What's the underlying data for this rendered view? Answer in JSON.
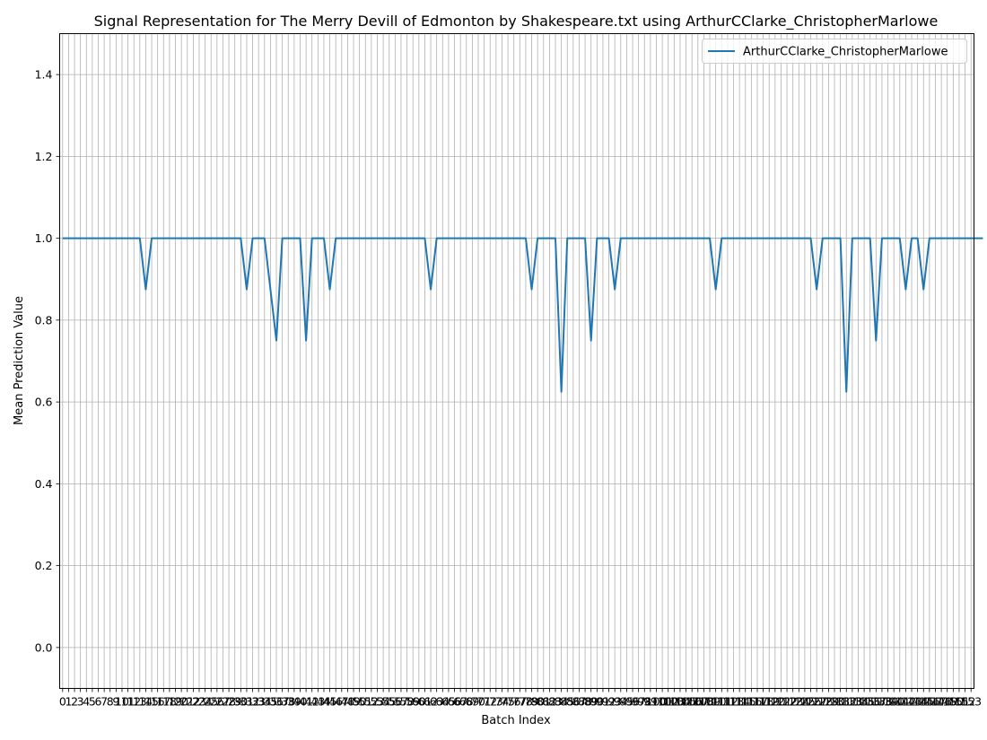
{
  "chart_data": {
    "type": "line",
    "title": "Signal Representation for The Merry Devill of Edmonton by Shakespeare.txt using ArthurCClarke_ChristopherMarlowe",
    "xlabel": "Batch Index",
    "ylabel": "Mean Prediction Value",
    "xlim": [
      -0.5,
      153.5
    ],
    "ylim": [
      -0.1,
      1.5
    ],
    "yticks": [
      0.0,
      0.2,
      0.4,
      0.6,
      0.8,
      1.0,
      1.2,
      1.4
    ],
    "ytick_labels": [
      "0.0",
      "0.2",
      "0.4",
      "0.6",
      "0.8",
      "1.0",
      "1.2",
      "1.4"
    ],
    "x_tick_start": 0,
    "x_tick_end": 153,
    "grid": true,
    "legend_position": "upper right",
    "series": [
      {
        "name": "ArthurCClarke_ChristopherMarlowe",
        "color": "#1f77b4",
        "values": [
          1,
          1,
          1,
          1,
          1,
          1,
          1,
          1,
          1,
          1,
          1,
          1,
          1,
          1,
          0.875,
          1,
          1,
          1,
          1,
          1,
          1,
          1,
          1,
          1,
          1,
          1,
          1,
          1,
          1,
          1,
          1,
          0.875,
          1,
          1,
          1,
          0.875,
          0.75,
          1,
          1,
          1,
          1,
          0.75,
          1,
          1,
          1,
          0.875,
          1,
          1,
          1,
          1,
          1,
          1,
          1,
          1,
          1,
          1,
          1,
          1,
          1,
          1,
          1,
          1,
          0.875,
          1,
          1,
          1,
          1,
          1,
          1,
          1,
          1,
          1,
          1,
          1,
          1,
          1,
          1,
          1,
          1,
          0.875,
          1,
          1,
          1,
          1,
          0.625,
          1,
          1,
          1,
          1,
          0.75,
          1,
          1,
          1,
          0.875,
          1,
          1,
          1,
          1,
          1,
          1,
          1,
          1,
          1,
          1,
          1,
          1,
          1,
          1,
          1,
          1,
          0.875,
          1,
          1,
          1,
          1,
          1,
          1,
          1,
          1,
          1,
          1,
          1,
          1,
          1,
          1,
          1,
          1,
          0.875,
          1,
          1,
          1,
          1,
          0.625,
          1,
          1,
          1,
          1,
          0.75,
          1,
          1,
          1,
          1,
          0.875,
          1,
          1,
          0.875,
          1,
          1,
          1,
          1,
          1,
          1,
          1,
          1,
          1,
          1
        ]
      }
    ]
  }
}
